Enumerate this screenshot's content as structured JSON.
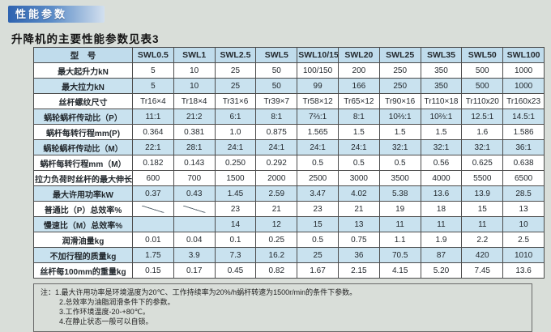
{
  "page": {
    "badge": "性能参数",
    "title": "升降机的主要性能参数见表3"
  },
  "theme": {
    "page-bg": "#d9ded9",
    "badge-blue": "#2e63b0",
    "badge-fade": "#d3e0ef",
    "header-blue": "#c0dcec",
    "row-blue": "#c9e2ef",
    "line": "#4c4c4c"
  },
  "table": {
    "columns": [
      "型　号",
      "SWL0.5",
      "SWL1",
      "SWL2.5",
      "SWL5",
      "SWL10/15",
      "SWL20",
      "SWL25",
      "SWL35",
      "SWL50",
      "SWL100"
    ],
    "rows": [
      {
        "label": "最大起升力kN",
        "values": [
          "5",
          "10",
          "25",
          "50",
          "100/150",
          "200",
          "250",
          "350",
          "500",
          "1000"
        ]
      },
      {
        "label": "最大拉力kN",
        "values": [
          "5",
          "10",
          "25",
          "50",
          "99",
          "166",
          "250",
          "350",
          "500",
          "1000"
        ]
      },
      {
        "label": "丝杆螺纹尺寸",
        "values": [
          "Tr16×4",
          "Tr18×4",
          "Tr31×6",
          "Tr39×7",
          "Tr58×12",
          "Tr65×12",
          "Tr90×16",
          "Tr110×18",
          "Tr110x20",
          "Tr160x23"
        ]
      },
      {
        "label": "蜗轮蜗杆传动比（P）",
        "values": [
          "11:1",
          "21:2",
          "6:1",
          "8:1",
          "7⅔:1",
          "8:1",
          "10⅔:1",
          "10⅔:1",
          "12.5:1",
          "14.5:1"
        ]
      },
      {
        "label": "蜗杆每转行程mm(P)",
        "values": [
          "0.364",
          "0.381",
          "1.0",
          "0.875",
          "1.565",
          "1.5",
          "1.5",
          "1.5",
          "1.6",
          "1.586"
        ]
      },
      {
        "label": "蜗轮蜗杆传动比（M）",
        "values": [
          "22:1",
          "28:1",
          "24:1",
          "24:1",
          "24:1",
          "24:1",
          "32:1",
          "32:1",
          "32:1",
          "36:1"
        ]
      },
      {
        "label": "蜗杆每转行程mm（M）",
        "values": [
          "0.182",
          "0.143",
          "0.250",
          "0.292",
          "0.5",
          "0.5",
          "0.5",
          "0.56",
          "0.625",
          "0.638"
        ]
      },
      {
        "label": "拉力负荷时丝杆的最大伸长mm",
        "values": [
          "600",
          "700",
          "1500",
          "2000",
          "2500",
          "3000",
          "3500",
          "4000",
          "5500",
          "6500"
        ]
      },
      {
        "label": "最大许用功率kW",
        "values": [
          "0.37",
          "0.43",
          "1.45",
          "2.59",
          "3.47",
          "4.02",
          "5.38",
          "13.6",
          "13.9",
          "28.5"
        ]
      },
      {
        "label": "普通比（P）总效率%",
        "values": [
          "/",
          "/",
          "23",
          "21",
          "23",
          "21",
          "19",
          "18",
          "15",
          "13"
        ]
      },
      {
        "label": "慢速比（M）总效率%",
        "values": [
          "/",
          "/",
          "14",
          "12",
          "15",
          "13",
          "11",
          "11",
          "11",
          "10"
        ]
      },
      {
        "label": "润滑油量kg",
        "values": [
          "0.01",
          "0.04",
          "0.1",
          "0.25",
          "0.5",
          "0.75",
          "1.1",
          "1.9",
          "2.2",
          "2.5"
        ]
      },
      {
        "label": "不加行程的质量kg",
        "values": [
          "1.75",
          "3.9",
          "7.3",
          "16.2",
          "25",
          "36",
          "70.5",
          "87",
          "420",
          "1010"
        ]
      },
      {
        "label": "丝杆每100mm的重量kg",
        "values": [
          "0.15",
          "0.17",
          "0.45",
          "0.82",
          "1.67",
          "2.15",
          "4.15",
          "5.20",
          "7.45",
          "13.6"
        ]
      }
    ]
  },
  "notes": {
    "prefix": "注：",
    "items": [
      "1.最大许用功率是环境温度为20℃、工作持续率为20%/h蜗杆转速为1500r/min的条件下参数。",
      "2.总效率为油脂润滑条件下的参数。",
      "3.工作环境温度-20-+80℃。",
      "4.在静止状态一般可以自锁。"
    ]
  }
}
